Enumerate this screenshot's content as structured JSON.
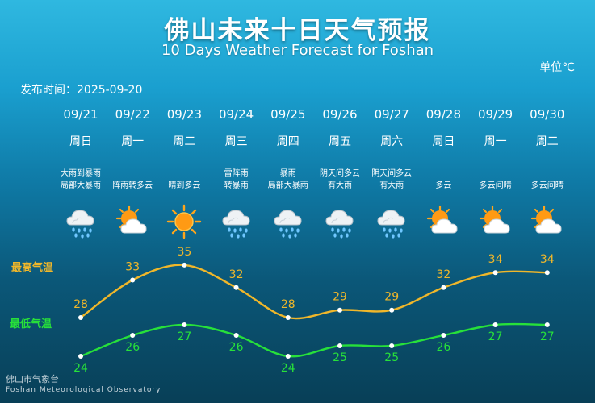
{
  "title": "佛山未来十日天气预报",
  "subtitle": "10 Days Weather Forecast for Foshan",
  "unit_label": "单位℃",
  "publish_label": "发布时间：2025-09-20",
  "high_label": "最高气温",
  "low_label": "最低气温",
  "footer": {
    "cn": "佛山市气象台",
    "en": "Foshan Meteorological Observatory"
  },
  "colors": {
    "high": "#f0b72a",
    "low": "#27e03a"
  },
  "days": [
    {
      "date": "09/21",
      "weekday": "周日",
      "desc1": "大雨到暴雨",
      "desc2": "局部大暴雨",
      "icon": "rain-cloud-icon"
    },
    {
      "date": "09/22",
      "weekday": "周一",
      "desc1": "阵雨转多云",
      "desc2": "",
      "icon": "sun-cloud-icon"
    },
    {
      "date": "09/23",
      "weekday": "周二",
      "desc1": "晴到多云",
      "desc2": "",
      "icon": "sun-icon"
    },
    {
      "date": "09/24",
      "weekday": "周三",
      "desc1": "雷阵雨",
      "desc2": "转暴雨",
      "icon": "rain-cloud-icon"
    },
    {
      "date": "09/25",
      "weekday": "周四",
      "desc1": "暴雨",
      "desc2": "局部大暴雨",
      "icon": "rain-cloud-icon"
    },
    {
      "date": "09/26",
      "weekday": "周五",
      "desc1": "阴天间多云",
      "desc2": "有大雨",
      "icon": "rain-cloud-icon"
    },
    {
      "date": "09/27",
      "weekday": "周六",
      "desc1": "阴天间多云",
      "desc2": "有大雨",
      "icon": "rain-cloud-icon"
    },
    {
      "date": "09/28",
      "weekday": "周日",
      "desc1": "多云",
      "desc2": "",
      "icon": "sun-cloud-icon"
    },
    {
      "date": "09/29",
      "weekday": "周一",
      "desc1": "多云间晴",
      "desc2": "",
      "icon": "sun-cloud-icon"
    },
    {
      "date": "09/30",
      "weekday": "周二",
      "desc1": "多云间晴",
      "desc2": "",
      "icon": "sun-cloud-icon"
    }
  ],
  "chart_data": {
    "type": "line",
    "categories": [
      "09/21",
      "09/22",
      "09/23",
      "09/24",
      "09/25",
      "09/26",
      "09/27",
      "09/28",
      "09/29",
      "09/30"
    ],
    "series": [
      {
        "name": "最高气温",
        "values": [
          28,
          33,
          35,
          32,
          28,
          29,
          29,
          32,
          34,
          34
        ]
      },
      {
        "name": "最低气温",
        "values": [
          24,
          26,
          27,
          26,
          24,
          25,
          25,
          26,
          27,
          27
        ]
      }
    ],
    "ylabel": "℃"
  }
}
